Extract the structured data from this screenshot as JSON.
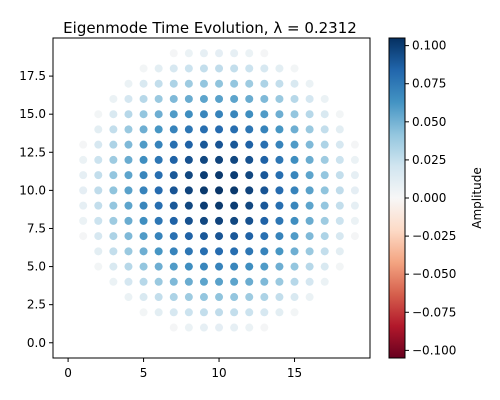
{
  "chart_data": {
    "type": "scatter",
    "title": "Eigenmode Time Evolution, λ = 0.2312",
    "xlim": [
      -1,
      20
    ],
    "ylim": [
      -1,
      20
    ],
    "x_ticks": [
      "0",
      "5",
      "10",
      "15"
    ],
    "x_tick_values": [
      0,
      5,
      10,
      15
    ],
    "y_ticks": [
      "0.0",
      "2.5",
      "5.0",
      "7.5",
      "10.0",
      "12.5",
      "15.0",
      "17.5"
    ],
    "y_tick_values": [
      0,
      2.5,
      5,
      7.5,
      10,
      12.5,
      15,
      17.5
    ],
    "grid": false,
    "colormap": "RdBu",
    "colorbar": {
      "label": "Amplitude",
      "range": [
        -0.105,
        0.105
      ],
      "ticks": [
        "0.100",
        "0.075",
        "0.050",
        "0.025",
        "0.000",
        "−0.025",
        "−0.050",
        "−0.075",
        "−0.100"
      ],
      "tick_values": [
        0.1,
        0.075,
        0.05,
        0.025,
        0,
        -0.025,
        -0.05,
        -0.075,
        -0.1
      ]
    },
    "points": {
      "domain": "disk of lattice sites (x = 1..19, y = 1..19) within radius 9.6 of (10, 10)",
      "y_row_ranges": [
        {
          "y": 1,
          "x_from": 7,
          "x_to": 13
        },
        {
          "y": 2,
          "x_from": 5,
          "x_to": 15
        },
        {
          "y": 3,
          "x_from": 4,
          "x_to": 16
        },
        {
          "y": 4,
          "x_from": 3,
          "x_to": 17
        },
        {
          "y": 5,
          "x_from": 2,
          "x_to": 18
        },
        {
          "y": 6,
          "x_from": 2,
          "x_to": 18
        },
        {
          "y": 7,
          "x_from": 1,
          "x_to": 19
        },
        {
          "y": 8,
          "x_from": 1,
          "x_to": 19
        },
        {
          "y": 9,
          "x_from": 1,
          "x_to": 19
        },
        {
          "y": 10,
          "x_from": 1,
          "x_to": 19
        },
        {
          "y": 11,
          "x_from": 1,
          "x_to": 19
        },
        {
          "y": 12,
          "x_from": 1,
          "x_to": 19
        },
        {
          "y": 13,
          "x_from": 1,
          "x_to": 19
        },
        {
          "y": 14,
          "x_from": 2,
          "x_to": 18
        },
        {
          "y": 15,
          "x_from": 2,
          "x_to": 18
        },
        {
          "y": 16,
          "x_from": 3,
          "x_to": 17
        },
        {
          "y": 17,
          "x_from": 4,
          "x_to": 16
        },
        {
          "y": 18,
          "x_from": 5,
          "x_to": 15
        },
        {
          "y": 19,
          "x_from": 7,
          "x_to": 13
        }
      ],
      "amplitude_model": "0.103 * cos(pi*r / (2*9.6)) where r = distance from (10, 10)",
      "peak_amplitude": 0.103
    }
  }
}
